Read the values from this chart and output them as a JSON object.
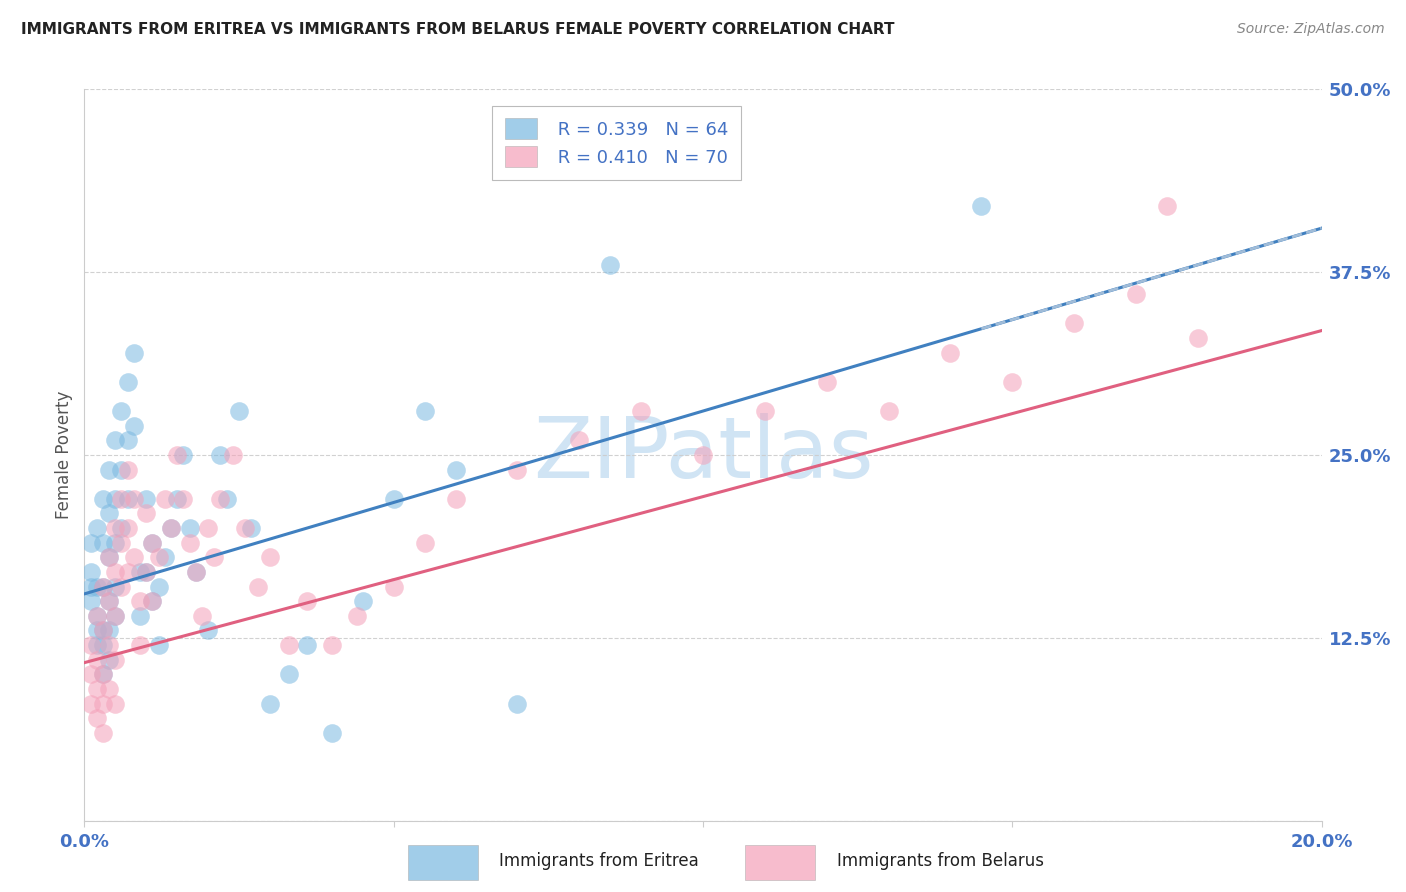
{
  "title": "IMMIGRANTS FROM ERITREA VS IMMIGRANTS FROM BELARUS FEMALE POVERTY CORRELATION CHART",
  "source": "Source: ZipAtlas.com",
  "ylabel": "Female Poverty",
  "xlim": [
    0.0,
    0.2
  ],
  "ylim": [
    0.0,
    0.5
  ],
  "yticks": [
    0.0,
    0.125,
    0.25,
    0.375,
    0.5
  ],
  "ytick_labels": [
    "",
    "12.5%",
    "25.0%",
    "37.5%",
    "50.0%"
  ],
  "xticks": [
    0.0,
    0.05,
    0.1,
    0.15,
    0.2
  ],
  "xtick_labels": [
    "0.0%",
    "",
    "",
    "",
    "20.0%"
  ],
  "R_eritrea": 0.339,
  "N_eritrea": 64,
  "R_belarus": 0.41,
  "N_belarus": 70,
  "color_eritrea": "#7ab8e0",
  "color_belarus": "#f4a0b8",
  "line_color_eritrea": "#4080c0",
  "line_color_belarus": "#e06080",
  "dash_color_eritrea": "#a0bcd8",
  "background_color": "#ffffff",
  "grid_color": "#cccccc",
  "axis_label_color": "#4472c4",
  "watermark_text": "ZIPatlas",
  "watermark_color": "#d0e4f4",
  "eritrea_x": [
    0.001,
    0.001,
    0.001,
    0.001,
    0.002,
    0.002,
    0.002,
    0.002,
    0.002,
    0.003,
    0.003,
    0.003,
    0.003,
    0.003,
    0.003,
    0.004,
    0.004,
    0.004,
    0.004,
    0.004,
    0.004,
    0.005,
    0.005,
    0.005,
    0.005,
    0.005,
    0.006,
    0.006,
    0.006,
    0.007,
    0.007,
    0.007,
    0.008,
    0.008,
    0.009,
    0.009,
    0.01,
    0.01,
    0.011,
    0.011,
    0.012,
    0.012,
    0.013,
    0.014,
    0.015,
    0.016,
    0.017,
    0.018,
    0.02,
    0.022,
    0.023,
    0.025,
    0.027,
    0.03,
    0.033,
    0.036,
    0.04,
    0.045,
    0.05,
    0.055,
    0.06,
    0.07,
    0.085,
    0.145
  ],
  "eritrea_y": [
    0.17,
    0.19,
    0.15,
    0.16,
    0.2,
    0.16,
    0.13,
    0.14,
    0.12,
    0.22,
    0.19,
    0.16,
    0.13,
    0.12,
    0.1,
    0.24,
    0.21,
    0.18,
    0.15,
    0.13,
    0.11,
    0.26,
    0.22,
    0.19,
    0.16,
    0.14,
    0.28,
    0.24,
    0.2,
    0.3,
    0.26,
    0.22,
    0.32,
    0.27,
    0.17,
    0.14,
    0.22,
    0.17,
    0.19,
    0.15,
    0.16,
    0.12,
    0.18,
    0.2,
    0.22,
    0.25,
    0.2,
    0.17,
    0.13,
    0.25,
    0.22,
    0.28,
    0.2,
    0.08,
    0.1,
    0.12,
    0.06,
    0.15,
    0.22,
    0.28,
    0.24,
    0.08,
    0.38,
    0.42
  ],
  "belarus_x": [
    0.001,
    0.001,
    0.001,
    0.002,
    0.002,
    0.002,
    0.002,
    0.003,
    0.003,
    0.003,
    0.003,
    0.003,
    0.004,
    0.004,
    0.004,
    0.004,
    0.005,
    0.005,
    0.005,
    0.005,
    0.005,
    0.006,
    0.006,
    0.006,
    0.007,
    0.007,
    0.007,
    0.008,
    0.008,
    0.009,
    0.009,
    0.01,
    0.01,
    0.011,
    0.011,
    0.012,
    0.013,
    0.014,
    0.015,
    0.016,
    0.017,
    0.018,
    0.019,
    0.02,
    0.021,
    0.022,
    0.024,
    0.026,
    0.028,
    0.03,
    0.033,
    0.036,
    0.04,
    0.044,
    0.05,
    0.055,
    0.06,
    0.07,
    0.08,
    0.09,
    0.1,
    0.11,
    0.12,
    0.13,
    0.14,
    0.15,
    0.16,
    0.17,
    0.175,
    0.18
  ],
  "belarus_y": [
    0.1,
    0.08,
    0.12,
    0.14,
    0.11,
    0.09,
    0.07,
    0.16,
    0.13,
    0.1,
    0.08,
    0.06,
    0.18,
    0.15,
    0.12,
    0.09,
    0.2,
    0.17,
    0.14,
    0.11,
    0.08,
    0.22,
    0.19,
    0.16,
    0.24,
    0.2,
    0.17,
    0.22,
    0.18,
    0.15,
    0.12,
    0.21,
    0.17,
    0.19,
    0.15,
    0.18,
    0.22,
    0.2,
    0.25,
    0.22,
    0.19,
    0.17,
    0.14,
    0.2,
    0.18,
    0.22,
    0.25,
    0.2,
    0.16,
    0.18,
    0.12,
    0.15,
    0.12,
    0.14,
    0.16,
    0.19,
    0.22,
    0.24,
    0.26,
    0.28,
    0.25,
    0.28,
    0.3,
    0.28,
    0.32,
    0.3,
    0.34,
    0.36,
    0.42,
    0.33
  ]
}
